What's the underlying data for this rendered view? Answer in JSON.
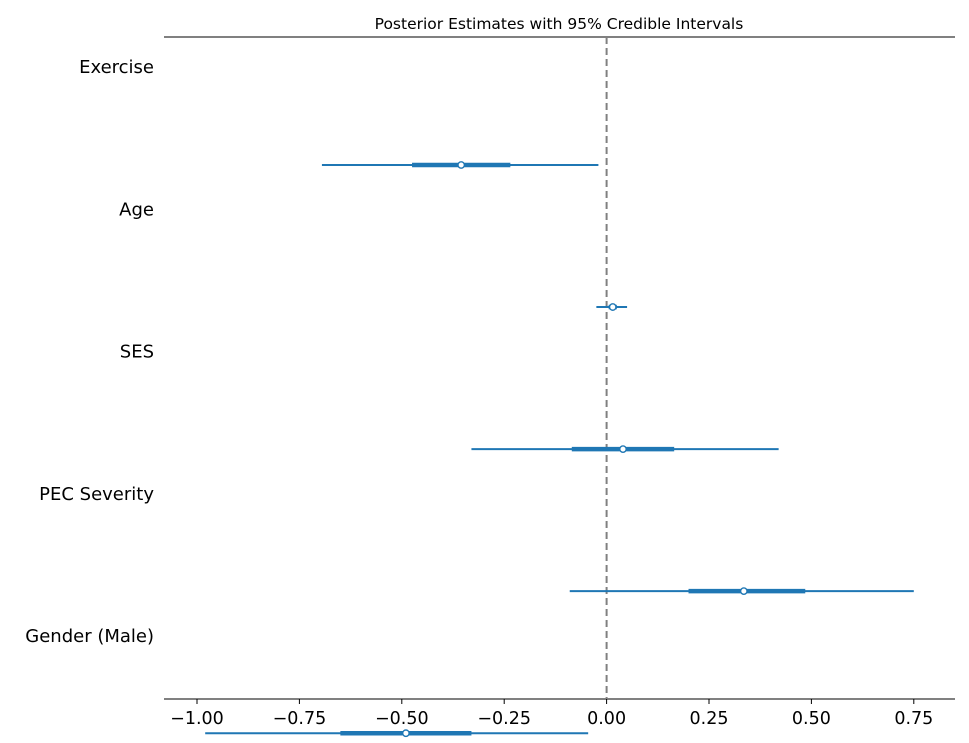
{
  "chart_data": {
    "type": "forest",
    "title": "Posterior Estimates with 95% Credible Intervals",
    "xlabel": "",
    "ylabel": "",
    "xlim": [
      -1.07,
      0.84
    ],
    "x_ticks": [
      -1.0,
      -0.75,
      -0.5,
      -0.25,
      0.0,
      0.25,
      0.5,
      0.75
    ],
    "x_tick_labels": [
      "−1.00",
      "−0.75",
      "−0.50",
      "−0.25",
      "0.00",
      "0.25",
      "0.50",
      "0.75"
    ],
    "reference_line": 0.0,
    "colors": {
      "interval": "#1f77b4",
      "reference": "#808080",
      "point_fill": "#ffffff"
    },
    "y_labels": [
      "Exercise",
      "Age",
      "SES",
      "PEC Severity",
      "Gender (Male)"
    ],
    "estimates": [
      {
        "mean": -0.355,
        "hdi_low": -0.695,
        "hdi_high": -0.02,
        "iqr_low": -0.475,
        "iqr_high": -0.235
      },
      {
        "mean": 0.015,
        "hdi_low": -0.025,
        "hdi_high": 0.05,
        "iqr_low": 0.005,
        "iqr_high": 0.025
      },
      {
        "mean": 0.04,
        "hdi_low": -0.33,
        "hdi_high": 0.42,
        "iqr_low": -0.085,
        "iqr_high": 0.165
      },
      {
        "mean": 0.335,
        "hdi_low": -0.09,
        "hdi_high": 0.75,
        "iqr_low": 0.2,
        "iqr_high": 0.485
      },
      {
        "mean": -0.49,
        "hdi_low": -0.98,
        "hdi_high": -0.045,
        "iqr_low": -0.65,
        "iqr_high": -0.33
      }
    ]
  }
}
